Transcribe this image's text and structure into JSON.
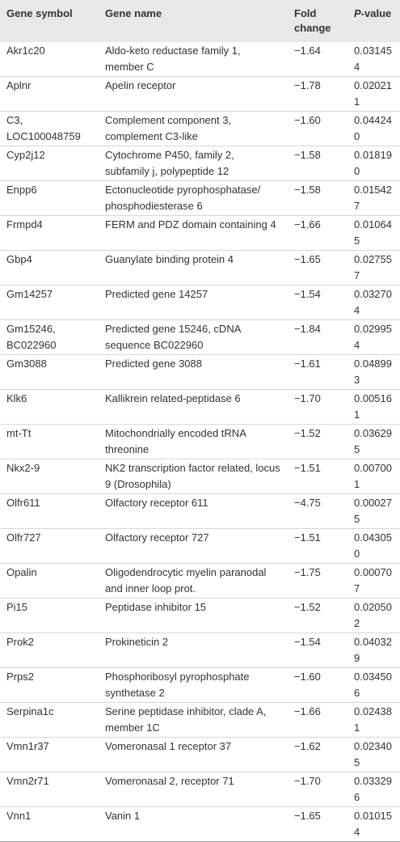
{
  "table": {
    "header": [
      "Gene symbol",
      "Gene name",
      "Fold change",
      "P-value"
    ],
    "rows": [
      [
        "Akr1c20",
        "Aldo-keto reductase family 1, member C",
        "−1.64",
        "0.031454"
      ],
      [
        "Aplnr",
        "Apelin receptor",
        "−1.78",
        "0.020211"
      ],
      [
        "C3, LOC100048759",
        "Complement component 3, complement C3-like",
        "−1.60",
        "0.044240"
      ],
      [
        "Cyp2j12",
        "Cytochrome P450, family 2, subfamily j, polypeptide 12",
        "−1.58",
        "0.018190"
      ],
      [
        "Enpp6",
        "Ectonucleotide pyrophosphatase/ phosphodiesterase 6",
        "−1.58",
        "0.015427"
      ],
      [
        "Frmpd4",
        "FERM and PDZ domain containing 4",
        "−1.66",
        "0.010645"
      ],
      [
        "Gbp4",
        "Guanylate binding protein 4",
        "−1.65",
        "0.027557"
      ],
      [
        "Gm14257",
        "Predicted gene 14257",
        "−1.54",
        "0.032704"
      ],
      [
        "Gm15246, BC022960",
        "Predicted gene 15246, cDNA sequence BC022960",
        "−1.84",
        "0.029954"
      ],
      [
        "Gm3088",
        "Predicted gene 3088",
        "−1.61",
        "0.048993"
      ],
      [
        "Klk6",
        "Kallikrein related-peptidase 6",
        "−1.70",
        "0.005161"
      ],
      [
        "mt-Tt",
        "Mitochondrially encoded tRNA threonine",
        "−1.52",
        "0.036295"
      ],
      [
        "Nkx2-9",
        "NK2 transcription factor related, locus 9 (Drosophila)",
        "−1.51",
        "0.007001"
      ],
      [
        "Olfr611",
        "Olfactory receptor 611",
        "−4.75",
        "0.000275"
      ],
      [
        "Olfr727",
        "Olfactory receptor 727",
        "−1.51",
        "0.043050"
      ],
      [
        "Opalin",
        "Oligodendrocytic myelin paranodal and inner loop prot.",
        "−1.75",
        "0.000707"
      ],
      [
        "Pi15",
        "Peptidase inhibitor 15",
        "−1.52",
        "0.020502"
      ],
      [
        "Prok2",
        "Prokineticin 2",
        "−1.54",
        "0.040329"
      ],
      [
        "Prps2",
        "Phosphoribosyl pyrophosphate synthetase 2",
        "−1.60",
        "0.034506"
      ],
      [
        "Serpina1c",
        "Serine peptidase inhibitor, clade A, member 1C",
        "−1.66",
        "0.024381"
      ],
      [
        "Vmn1r37",
        "Vomeronasal 1 receptor 37",
        "−1.62",
        "0.023405"
      ],
      [
        "Vmn2r71",
        "Vomeronasal 2, receptor 71",
        "−1.70",
        "0.033296"
      ],
      [
        "Vnn1",
        "Vanin 1",
        "−1.65",
        "0.010154"
      ]
    ]
  }
}
